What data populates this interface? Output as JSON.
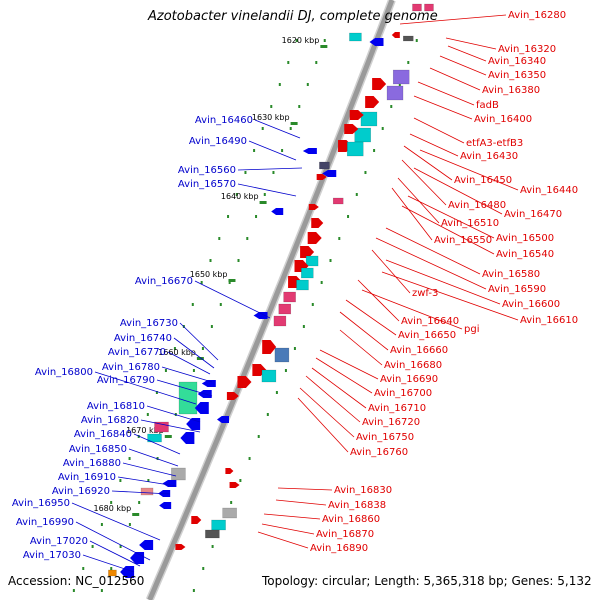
{
  "title": "Azotobacter vinelandii DJ, complete genome",
  "footer": {
    "accession": "Accession: NC_012560",
    "topology": "Topology: circular; Length: 5,365,318 bp; Genes: 5,132"
  },
  "colors": {
    "right_label": "#e00000",
    "left_label": "#0000cc",
    "backbone": "#9a9a9a",
    "tick": "#2a8a2a"
  },
  "kbp_ticks": [
    "1620 kbp",
    "1630 kbp",
    "1640 kbp",
    "1650 kbp",
    "1660 kbp",
    "1670 kbp",
    "1680 kbp"
  ],
  "right_labels": [
    "Avin_16280",
    "Avin_16320",
    "Avin_16340",
    "Avin_16350",
    "Avin_16380",
    "fadB",
    "Avin_16400",
    "etfA3-etfB3",
    "Avin_16430",
    "Avin_16450",
    "Avin_16440",
    "Avin_16480",
    "Avin_16470",
    "Avin_16510",
    "Avin_16550",
    "Avin_16500",
    "Avin_16540",
    "Avin_16580",
    "Avin_16590",
    "zwf-3",
    "Avin_16600",
    "Avin_16610",
    "Avin_16640",
    "pgi",
    "Avin_16650",
    "Avin_16660",
    "Avin_16680",
    "Avin_16690",
    "Avin_16700",
    "Avin_16710",
    "Avin_16720",
    "Avin_16750",
    "Avin_16760",
    "Avin_16830",
    "Avin_16838",
    "Avin_16860",
    "Avin_16870",
    "Avin_16890"
  ],
  "left_labels": [
    "Avin_16460",
    "Avin_16490",
    "Avin_16560",
    "Avin_16570",
    "Avin_16670",
    "Avin_16730",
    "Avin_16740",
    "Avin_16770",
    "Avin_16800",
    "Avin_16780",
    "Avin_16790",
    "Avin_16810",
    "Avin_16820",
    "Avin_16840",
    "Avin_16850",
    "Avin_16880",
    "Avin_16910",
    "Avin_16920",
    "Avin_16950",
    "Avin_16990",
    "Avin_17020",
    "Avin_17030"
  ]
}
